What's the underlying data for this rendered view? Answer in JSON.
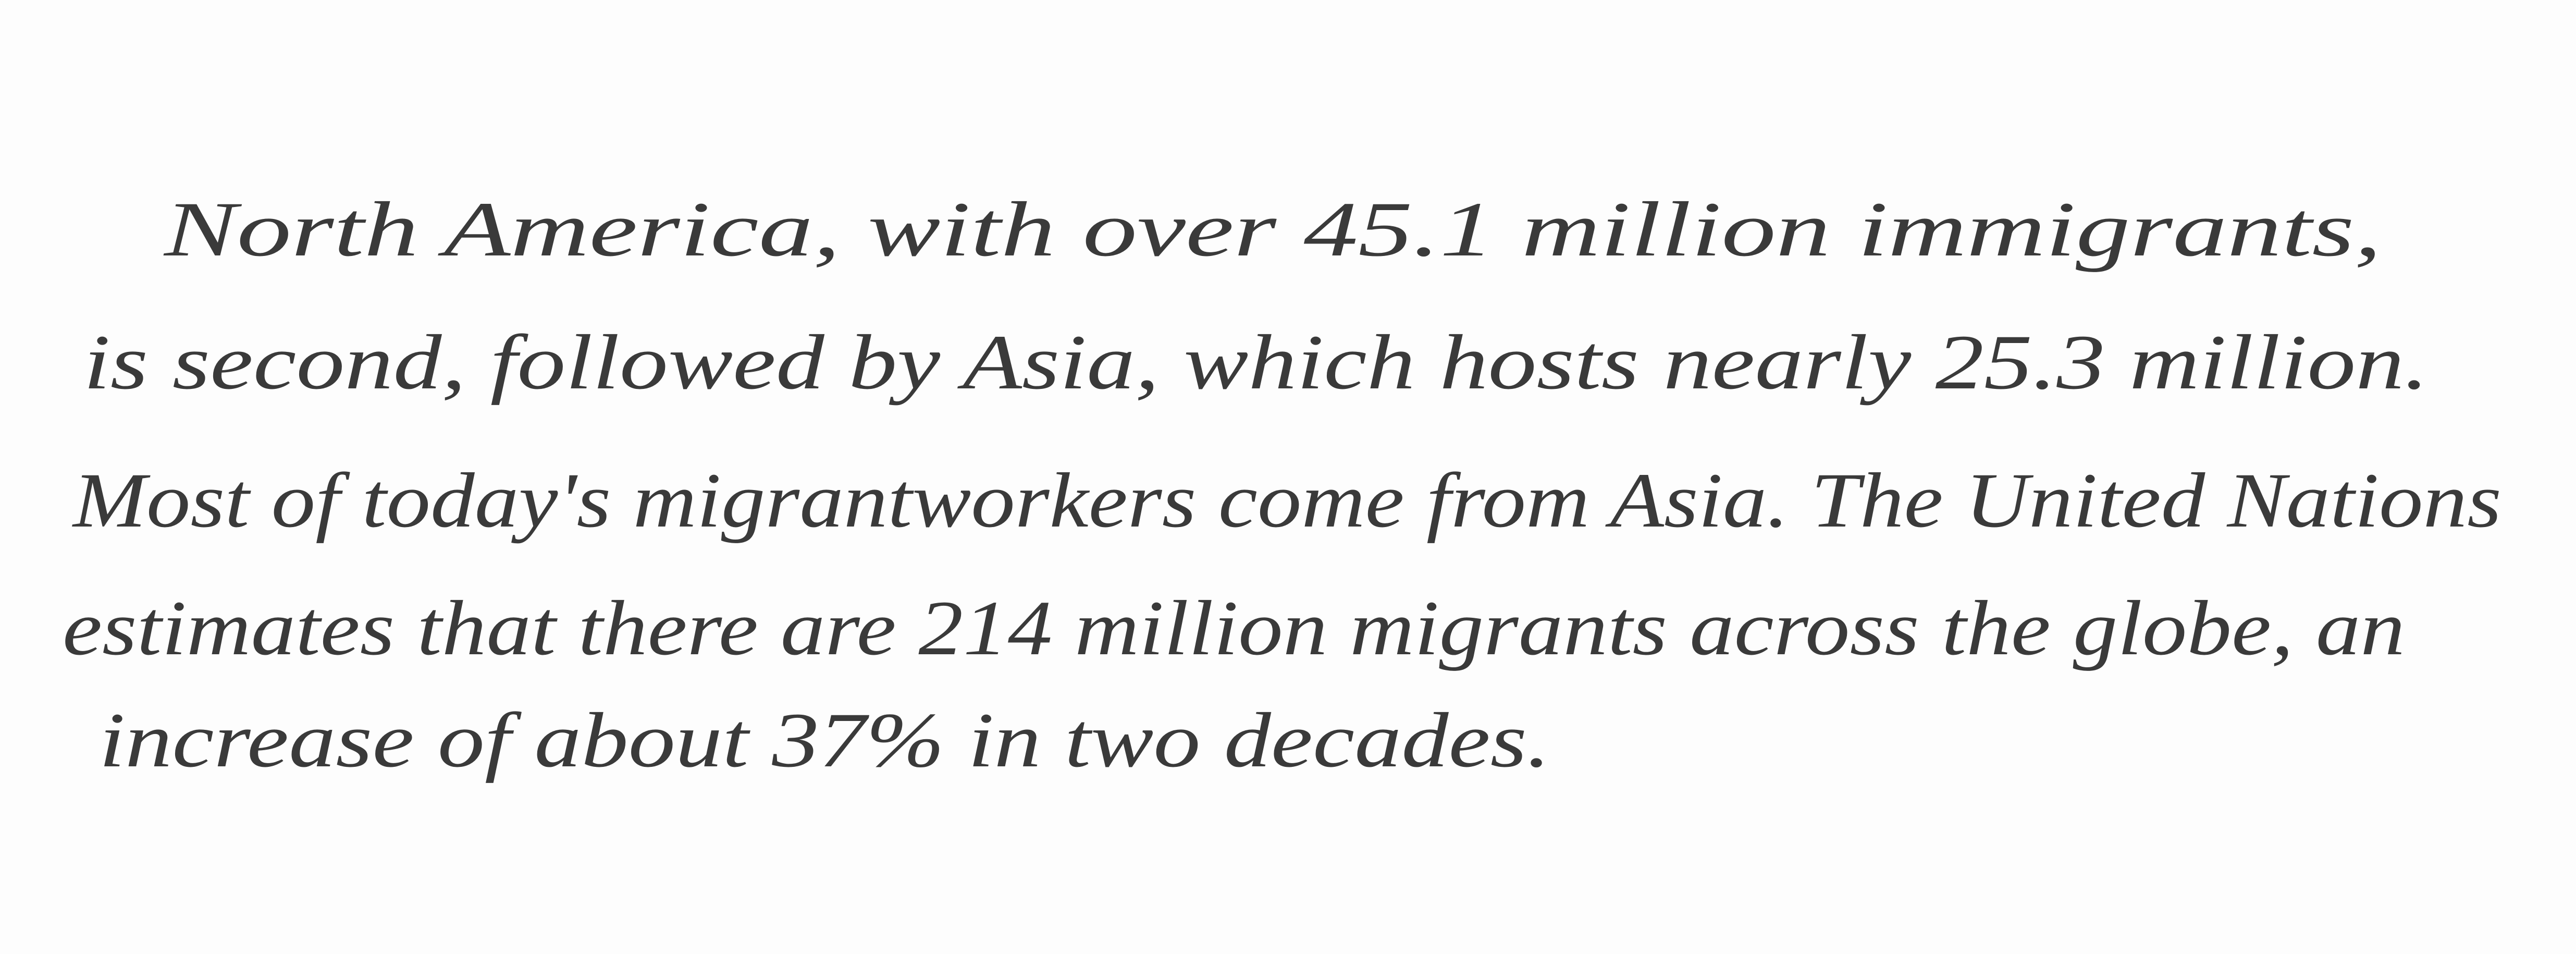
{
  "paragraph": {
    "lines": [
      "North America, with over 45.1 million immigrants,",
      "is second, followed by Asia, which hosts nearly 25.3 million.",
      "Most of today's migrantworkers come from Asia. The United Nations",
      "estimates that there are 214 million migrants across the globe, an",
      "increase of about 37% in two decades."
    ]
  }
}
